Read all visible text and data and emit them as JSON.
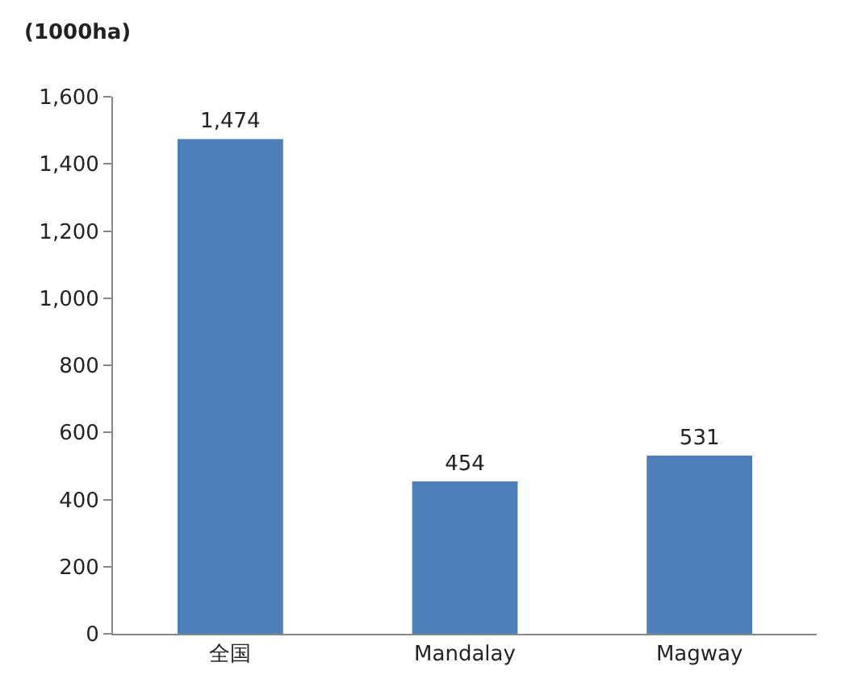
{
  "chart_data": {
    "type": "bar",
    "ylabel": "(1000ha)",
    "categories": [
      "全国",
      "Mandalay",
      "Magway"
    ],
    "values": [
      1474,
      454,
      531
    ],
    "value_labels": [
      "1,474",
      "454",
      "531"
    ],
    "color": "#4f7fb8",
    "ylim": [
      0,
      1600
    ],
    "yticks": [
      0,
      200,
      400,
      600,
      800,
      {
        "value": 1000,
        "label": "1,000"
      },
      {
        "value": 1200,
        "label": "1,200"
      },
      {
        "value": 1400,
        "label": "1,400"
      },
      {
        "value": 1600,
        "label": "1,600"
      }
    ],
    "tick_labels": [
      "x",
      "y"
    ]
  }
}
